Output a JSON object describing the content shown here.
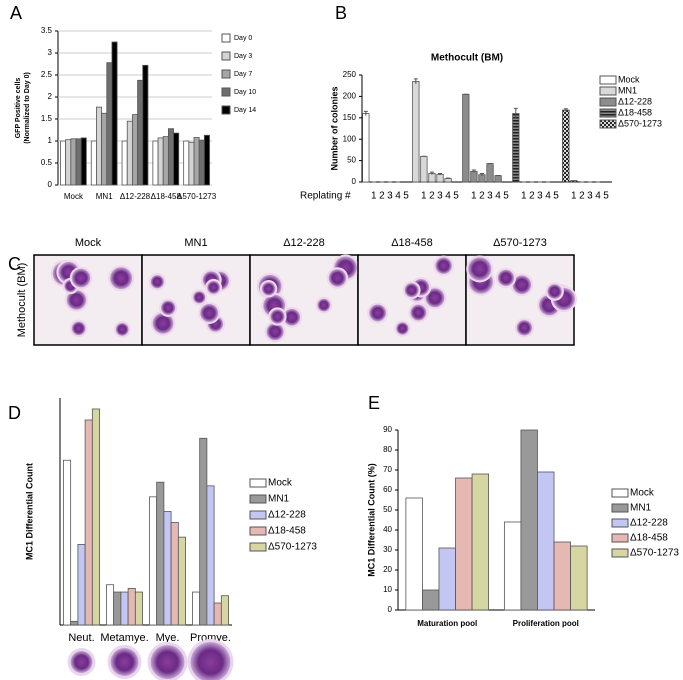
{
  "chart_data": [
    {
      "type": "bar",
      "panel": "A",
      "ylabel": [
        "GFP Positive cells",
        "(Normalized to Day 0)"
      ],
      "categories": [
        "Mock",
        "MN1",
        "Δ12-228",
        "Δ18-458",
        "Δ570-1273"
      ],
      "series": [
        {
          "name": "Day 0",
          "color": "#ffffff",
          "values": [
            1.0,
            1.0,
            1.0,
            1.0,
            1.0
          ]
        },
        {
          "name": "Day 3",
          "color": "#d4d4d4",
          "values": [
            1.03,
            1.77,
            1.45,
            1.07,
            0.97
          ]
        },
        {
          "name": "Day 7",
          "color": "#a6a6a6",
          "values": [
            1.05,
            1.63,
            1.6,
            1.1,
            1.08
          ]
        },
        {
          "name": "Day 10",
          "color": "#6e6e6e",
          "values": [
            1.05,
            2.78,
            2.38,
            1.28,
            1.02
          ]
        },
        {
          "name": "Day 14",
          "color": "#000000",
          "values": [
            1.07,
            3.25,
            2.72,
            1.18,
            1.13
          ]
        }
      ],
      "ylim": [
        0,
        3.5
      ],
      "yticks": [
        0,
        0.5,
        1,
        1.5,
        2,
        2.5,
        3,
        3.5
      ],
      "grid": true
    },
    {
      "type": "bar",
      "panel": "B",
      "group_by": "series",
      "title": "Methocult (BM)",
      "ylabel": "Number of colonies",
      "xlabel": "Replating #",
      "categories": [
        "1",
        "2",
        "3",
        "4",
        "5"
      ],
      "series": [
        {
          "name": "Mock",
          "color": "#ffffff",
          "values": [
            160,
            0,
            0,
            0,
            0
          ],
          "errors": [
            5,
            0,
            0,
            0,
            0
          ]
        },
        {
          "name": "MN1",
          "color": "#d9d9d9",
          "values": [
            235,
            60,
            20,
            18,
            8
          ],
          "errors": [
            6,
            0,
            3,
            2,
            1
          ]
        },
        {
          "name": "Δ12-228",
          "color": "#8c8c8c",
          "values": [
            205,
            25,
            17,
            43,
            15
          ],
          "errors": [
            0,
            3,
            3,
            0,
            0
          ]
        },
        {
          "name": "Δ18-458",
          "color": "#555555",
          "pattern": "stripes",
          "values": [
            160,
            0,
            0,
            0,
            0
          ],
          "errors": [
            12,
            0,
            0,
            0,
            0
          ]
        },
        {
          "name": "Δ570-1273",
          "color": "#333333",
          "pattern": "checks",
          "values": [
            168,
            3,
            0,
            0,
            0
          ],
          "errors": [
            3,
            0,
            0,
            0,
            0
          ]
        }
      ],
      "ylim": [
        0,
        250
      ],
      "yticks": [
        0,
        50,
        100,
        150,
        200,
        250
      ],
      "grid": false
    },
    {
      "type": "micrograph",
      "panel": "C",
      "ylabel": "Methocult (BM)",
      "categories": [
        "Mock",
        "MN1",
        "Δ12-228",
        "Δ18-458",
        "Δ570-1273"
      ]
    },
    {
      "type": "bar",
      "panel": "D",
      "ylabel": "MC1 Differential Count",
      "categories": [
        "Neut.",
        "Metamye.",
        "Mye.",
        "Promye."
      ],
      "series": [
        {
          "name": "Mock",
          "color": "#ffffff",
          "values": [
            45,
            11,
            35,
            9
          ]
        },
        {
          "name": "MN1",
          "color": "#999999",
          "values": [
            1,
            9,
            39,
            51
          ]
        },
        {
          "name": "Δ12-228",
          "color": "#c3c6f2",
          "values": [
            22,
            9,
            31,
            38
          ]
        },
        {
          "name": "Δ18-458",
          "color": "#e6b8b3",
          "values": [
            56,
            10,
            28,
            6
          ]
        },
        {
          "name": "Δ570-1273",
          "color": "#d6d6a2",
          "values": [
            59,
            9,
            24,
            8
          ]
        }
      ],
      "ylim": [
        0,
        62
      ],
      "grid": false
    },
    {
      "type": "bar",
      "panel": "E",
      "ylabel": "MC1 Differential Count (%)",
      "categories": [
        "Maturation pool",
        "Proliferation pool"
      ],
      "series": [
        {
          "name": "Mock",
          "color": "#ffffff",
          "values": [
            56,
            44
          ]
        },
        {
          "name": "MN1",
          "color": "#999999",
          "values": [
            10,
            90
          ]
        },
        {
          "name": "Δ12-228",
          "color": "#c3c6f2",
          "values": [
            31,
            69
          ]
        },
        {
          "name": "Δ18-458",
          "color": "#e6b8b3",
          "values": [
            66,
            34
          ]
        },
        {
          "name": "Δ570-1273",
          "color": "#d6d6a2",
          "values": [
            68,
            32
          ]
        }
      ],
      "ylim": [
        0,
        90
      ],
      "yticks": [
        0,
        10,
        20,
        30,
        40,
        50,
        60,
        70,
        80,
        90
      ],
      "grid": false
    }
  ]
}
